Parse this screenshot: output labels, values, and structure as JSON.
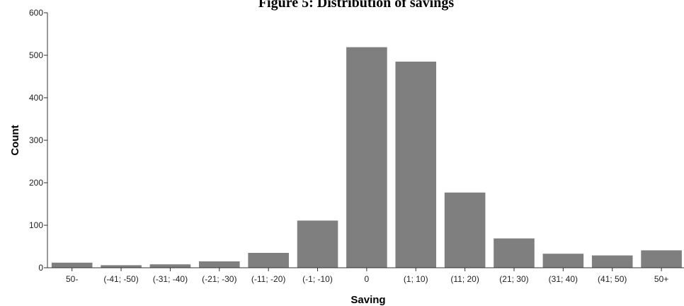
{
  "chart_data": {
    "type": "bar",
    "title": "Figure 5: Distribution of savings",
    "xlabel": "Saving",
    "ylabel": "Count",
    "categories": [
      "50-",
      "(-41; -50)",
      "(-31; -40)",
      "(-21; -30)",
      "(-11; -20)",
      "(-1; -10)",
      "0",
      "(1; 10)",
      "(11; 20)",
      "(21; 30)",
      "(31; 40)",
      "(41; 50)",
      "50+"
    ],
    "values": [
      12,
      6,
      8,
      15,
      35,
      111,
      519,
      485,
      177,
      69,
      33,
      29,
      41
    ],
    "ylim": [
      0,
      600
    ],
    "yticks": [
      "0",
      "100",
      "200",
      "300",
      "400",
      "500",
      "600"
    ],
    "grid": false,
    "bar_color": "#7f7f7f"
  }
}
